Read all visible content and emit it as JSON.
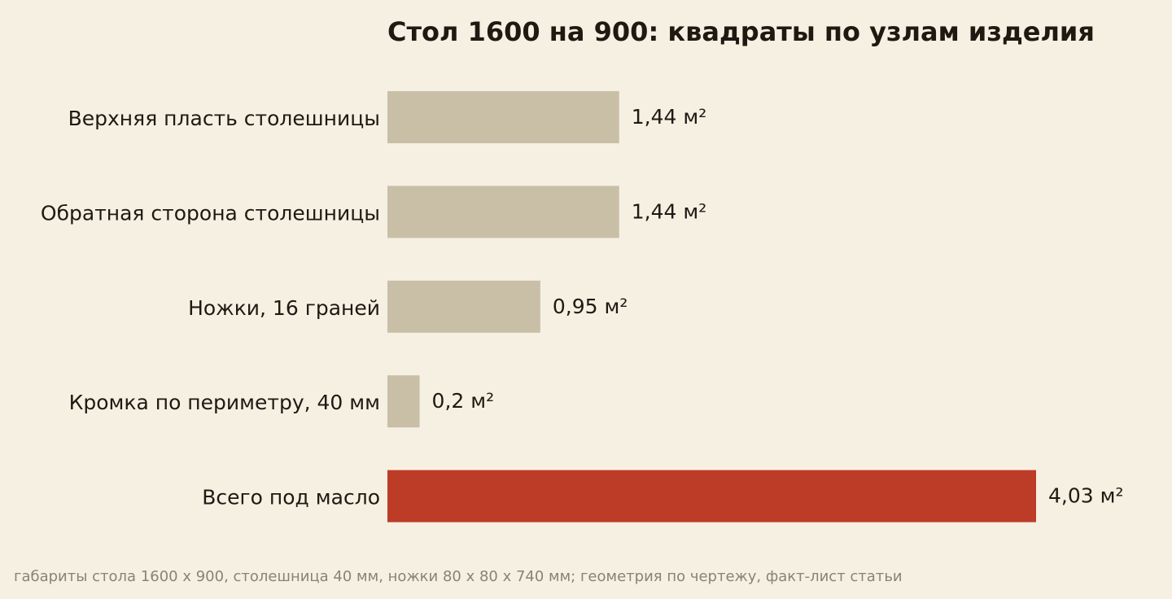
{
  "chart_data": {
    "type": "bar",
    "orientation": "horizontal",
    "title": "Стол 1600 на 900: квадраты по узлам изделия",
    "categories": [
      "Верхняя пласть столешницы",
      "Обратная сторона столешницы",
      "Ножки, 16 граней",
      "Кромка по периметру, 40 мм",
      "Всего под масло"
    ],
    "values": [
      1.44,
      1.44,
      0.95,
      0.2,
      4.03
    ],
    "value_labels": [
      "1,44 м²",
      "1,44 м²",
      "0,95 м²",
      "0,2 м²",
      "4,03 м²"
    ],
    "colors": [
      "#c9bfa7",
      "#c9bfa7",
      "#c9bfa7",
      "#c9bfa7",
      "#bd3c27"
    ],
    "xlim": [
      0,
      4.03
    ],
    "grid": false,
    "legend": false
  },
  "footnote": "габариты стола 1600 х 900, столешница 40 мм, ножки 80 х 80 х 740 мм; геометрия по чертежу, факт-лист статьи"
}
